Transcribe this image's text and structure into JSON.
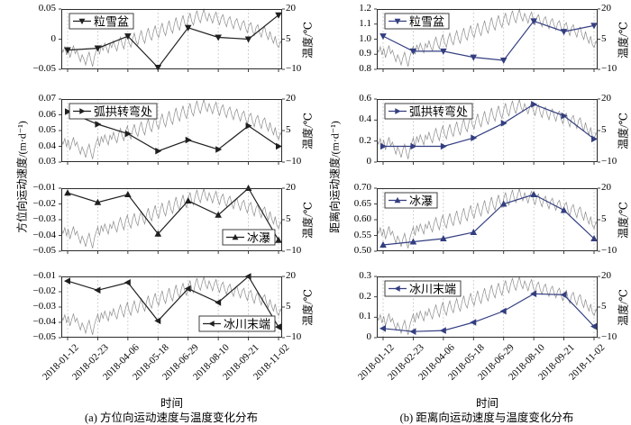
{
  "figure": {
    "background": "#ffffff"
  },
  "colors": {
    "azimuth_series": "#1f1f1f",
    "range_series": "#333e80",
    "temperature_line": "#8c8c8c",
    "grid": "#b5b5b5",
    "axis": "#2b2b2b",
    "text": "#000000",
    "legend_bg": "#ffffff"
  },
  "chart_data": {
    "type": "line",
    "grid": "vertical-dotted",
    "x": {
      "title": "时间",
      "categories": [
        "2018-01-12",
        "2018-02-23",
        "2018-04-06",
        "2018-05-18",
        "2018-06-29",
        "2018-08-10",
        "2018-09-21",
        "2018-11-02"
      ]
    },
    "right_axis": {
      "label": "温度/℃",
      "ylim": [
        -10,
        20
      ],
      "ticks": [
        {
          "v": 20,
          "label": "20"
        },
        {
          "v": 5,
          "label": "5"
        },
        {
          "v": -10,
          "label": "−10"
        }
      ]
    },
    "columns": [
      {
        "key": "a",
        "ylabel": "方位向运动速度/(m·d⁻¹)",
        "xlabel": "时间",
        "caption": "(a) 方位向运动速度与温度变化分布",
        "series_color": "#1f1f1f"
      },
      {
        "key": "b",
        "ylabel": "距离向运动速度/(m·d⁻¹)",
        "xlabel": "时间",
        "caption": "(b) 距离向运动速度与温度变化分布",
        "series_color": "#333e80"
      }
    ],
    "panels": [
      {
        "id": "a1",
        "column": 0,
        "row": 0,
        "name": "粒雪盆",
        "marker": "triangle-down",
        "legend_pos": "top-left",
        "ylim": [
          -0.05,
          0.05
        ],
        "yticks": [
          {
            "v": 0.05,
            "label": "0.05"
          },
          {
            "v": 0,
            "label": "0"
          },
          {
            "v": -0.05,
            "label": "−0.05"
          }
        ],
        "values": [
          -0.018,
          -0.015,
          0.005,
          -0.047,
          0.019,
          0.003,
          0,
          0.04
        ]
      },
      {
        "id": "a2",
        "column": 0,
        "row": 1,
        "name": "弧拱转弯处",
        "marker": "triangle-right",
        "legend_pos": "top-left",
        "ylim": [
          0.03,
          0.07
        ],
        "yticks": [
          {
            "v": 0.07,
            "label": "0.07"
          },
          {
            "v": 0.06,
            "label": "0.06"
          },
          {
            "v": 0.05,
            "label": "0.05"
          },
          {
            "v": 0.04,
            "label": "0.04"
          },
          {
            "v": 0.03,
            "label": "0.03"
          }
        ],
        "values": [
          0.062,
          0.054,
          0.048,
          0.037,
          0.044,
          0.038,
          0.053,
          0.04
        ]
      },
      {
        "id": "a3",
        "column": 0,
        "row": 2,
        "name": "冰瀑",
        "marker": "triangle-up",
        "legend_pos": "bottom-right",
        "ylim": [
          -0.05,
          -0.01
        ],
        "yticks": [
          {
            "v": -0.01,
            "label": "−0.01"
          },
          {
            "v": -0.02,
            "label": "−0.02"
          },
          {
            "v": -0.03,
            "label": "−0.03"
          },
          {
            "v": -0.04,
            "label": "−0.04"
          },
          {
            "v": -0.05,
            "label": "−0.05"
          }
        ],
        "values": [
          -0.013,
          -0.019,
          -0.014,
          -0.039,
          -0.018,
          -0.027,
          -0.01,
          -0.043
        ]
      },
      {
        "id": "a4",
        "column": 0,
        "row": 3,
        "name": "冰川末端",
        "marker": "triangle-left",
        "legend_pos": "bottom-right",
        "ylim": [
          -0.05,
          -0.01
        ],
        "yticks": [
          {
            "v": -0.01,
            "label": "−0.01"
          },
          {
            "v": -0.02,
            "label": "−0.02"
          },
          {
            "v": -0.03,
            "label": "−0.03"
          },
          {
            "v": -0.04,
            "label": "−0.04"
          },
          {
            "v": -0.05,
            "label": "−0.05"
          }
        ],
        "values": [
          -0.013,
          -0.019,
          -0.014,
          -0.039,
          -0.018,
          -0.027,
          -0.01,
          -0.043
        ]
      },
      {
        "id": "b1",
        "column": 1,
        "row": 0,
        "name": "粒雪盆",
        "marker": "triangle-down",
        "legend_pos": "top-left",
        "ylim": [
          0.8,
          1.2
        ],
        "yticks": [
          {
            "v": 1.2,
            "label": "1.2"
          },
          {
            "v": 1.1,
            "label": "1.1"
          },
          {
            "v": 1.0,
            "label": "1.0"
          },
          {
            "v": 0.9,
            "label": "0.9"
          },
          {
            "v": 0.8,
            "label": "0.8"
          }
        ],
        "values": [
          1.02,
          0.92,
          0.92,
          0.88,
          0.86,
          1.12,
          1.05,
          1.09
        ]
      },
      {
        "id": "b2",
        "column": 1,
        "row": 1,
        "name": "弧拱转弯处",
        "marker": "triangle-right",
        "legend_pos": "top-left",
        "ylim": [
          0,
          0.6
        ],
        "yticks": [
          {
            "v": 0.6,
            "label": "0.6"
          },
          {
            "v": 0.4,
            "label": "0.4"
          },
          {
            "v": 0.2,
            "label": "0.2"
          },
          {
            "v": 0,
            "label": "0"
          }
        ],
        "values": [
          0.15,
          0.15,
          0.15,
          0.23,
          0.37,
          0.55,
          0.44,
          0.22
        ]
      },
      {
        "id": "b3",
        "column": 1,
        "row": 2,
        "name": "冰瀑",
        "marker": "triangle-up",
        "legend_pos": "top-left",
        "ylim": [
          0.5,
          0.7
        ],
        "yticks": [
          {
            "v": 0.7,
            "label": "0.70"
          },
          {
            "v": 0.65,
            "label": "0.65"
          },
          {
            "v": 0.6,
            "label": "0.60"
          },
          {
            "v": 0.55,
            "label": "0.55"
          },
          {
            "v": 0.5,
            "label": "0.50"
          }
        ],
        "values": [
          0.52,
          0.53,
          0.54,
          0.56,
          0.65,
          0.68,
          0.63,
          0.54
        ]
      },
      {
        "id": "b4",
        "column": 1,
        "row": 3,
        "name": "冰川末端",
        "marker": "triangle-left",
        "legend_pos": "top-left",
        "ylim": [
          0,
          0.3
        ],
        "yticks": [
          {
            "v": 0.3,
            "label": "0.3"
          },
          {
            "v": 0.2,
            "label": "0.2"
          },
          {
            "v": 0.1,
            "label": "0.1"
          },
          {
            "v": 0,
            "label": "0"
          }
        ],
        "values": [
          0.045,
          0.03,
          0.035,
          0.075,
          0.13,
          0.215,
          0.21,
          0.055
        ]
      },
      {
        "id": "temperature",
        "column": "both",
        "row": "all",
        "name": "温度",
        "marker": "none",
        "legend_pos": "none",
        "ylim": [
          -10,
          20
        ],
        "yticks": [
          {
            "v": 20,
            "label": "20"
          },
          {
            "v": 5,
            "label": "5"
          },
          {
            "v": -10,
            "label": "−10"
          }
        ],
        "values": [
          0.8,
          -1.5,
          1.2,
          -2.8,
          0.5,
          -4.2,
          -1.0,
          1.8,
          -2.2,
          -0.5,
          -3.5,
          -6.2,
          -2.8,
          -5.0,
          -7.8,
          -4.2,
          -1.5,
          -5.5,
          -8.6,
          -3.8,
          -1.0,
          1.5,
          -2.5,
          2.2,
          -0.5,
          3.0,
          0.5,
          -1.8,
          2.8,
          0.8,
          4.2,
          1.2,
          -0.8,
          3.5,
          6.0,
          2.5,
          0.2,
          4.8,
          7.2,
          3.2,
          1.0,
          5.2,
          8.0,
          4.0,
          2.2,
          6.5,
          9.2,
          5.0,
          3.0,
          7.5,
          10.5,
          6.2,
          4.5,
          8.8,
          11.8,
          7.5,
          5.8,
          10.0,
          13.0,
          8.8,
          6.8,
          11.2,
          14.2,
          10.0,
          8.0,
          12.5,
          15.8,
          11.5,
          9.5,
          13.8,
          16.8,
          12.8,
          10.8,
          15.0,
          18.0,
          13.8,
          12.0,
          16.2,
          19.2,
          15.2,
          13.2,
          17.0,
          19.8,
          16.0,
          14.0,
          17.8,
          15.5,
          13.0,
          16.5,
          18.5,
          14.5,
          12.2,
          15.8,
          17.2,
          13.5,
          11.2,
          14.8,
          16.2,
          12.5,
          10.2,
          13.8,
          15.2,
          11.8,
          9.5,
          13.0,
          14.2,
          10.5,
          8.2,
          12.0,
          13.2,
          9.2,
          6.8,
          10.8,
          12.2,
          8.5,
          6.0,
          9.8,
          11.0,
          7.2,
          4.8,
          8.8,
          5.5,
          3.0,
          6.5,
          2.2,
          0.8,
          4.0,
          2.0
        ]
      }
    ]
  }
}
